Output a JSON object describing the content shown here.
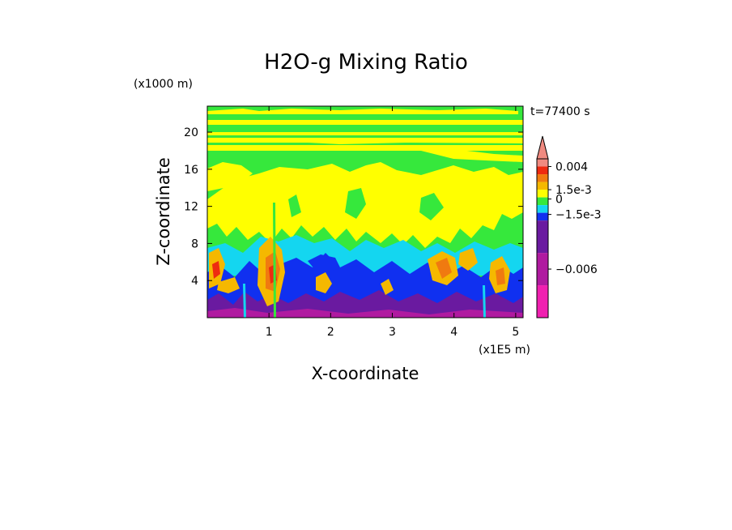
{
  "chart_data": {
    "type": "heatmap",
    "title": "H2O-g Mixing Ratio",
    "time_label": "t=77400 s",
    "xlabel": "X-coordinate",
    "ylabel": "Z-coordinate",
    "x_multiplier": "(x1E5 m)",
    "y_multiplier": "(x1000 m)",
    "xlim": [
      0,
      5.12
    ],
    "ylim": [
      0,
      22.8
    ],
    "x_ticks": [
      1,
      2,
      3,
      4,
      5
    ],
    "y_ticks": [
      4,
      8,
      12,
      16,
      20
    ],
    "grid": false,
    "colorbar": {
      "placement": "right",
      "extend": "max",
      "tick_labels": [
        {
          "value": 0.004,
          "label": "0.004"
        },
        {
          "value": 0.0015,
          "label": "1.5e-3"
        },
        {
          "value": 0,
          "label": "0"
        },
        {
          "value": -0.0015,
          "label": "−1.5e-3"
        },
        {
          "value": -0.006,
          "label": "−0.006"
        }
      ],
      "colors_top_to_bottom": [
        "#f08a80",
        "#ee2a10",
        "#f07a10",
        "#f5b800",
        "#ffff00",
        "#36e83c",
        "#14d6f0",
        "#1030f0",
        "#6a1aa0",
        "#b01aa0",
        "#f020b0"
      ]
    },
    "field_levels": {
      "magenta": -0.008,
      "purple": -0.004,
      "blue": -0.002,
      "cyan": -0.001,
      "green": -0.0003,
      "yellow": 0.0003,
      "orange": 0.001,
      "dark_orange": 0.0017,
      "red": 0.003
    },
    "field_description_levels": [
      {
        "z_range_km": [
          0,
          2
        ],
        "dominant": "purple/blue"
      },
      {
        "z_range_km": [
          2,
          6
        ],
        "dominant": "blue with orange/red plumes"
      },
      {
        "z_range_km": [
          6,
          8
        ],
        "dominant": "cyan/green"
      },
      {
        "z_range_km": [
          8,
          17
        ],
        "dominant": "green/yellow"
      },
      {
        "z_range_km": [
          17,
          22.8
        ],
        "dominant": "green/yellow stripes"
      }
    ]
  }
}
